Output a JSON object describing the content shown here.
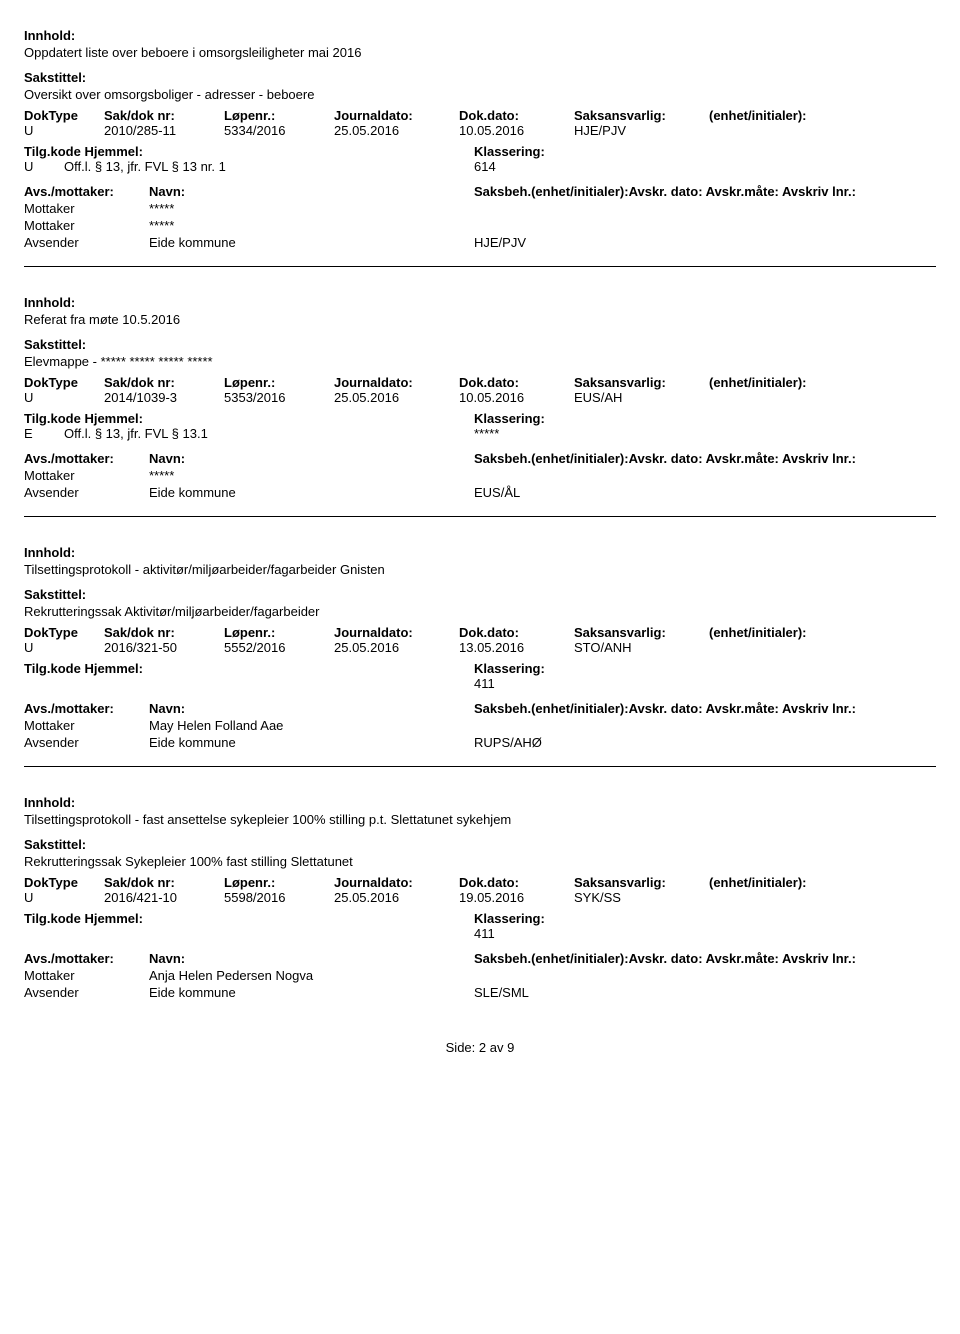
{
  "labels": {
    "innhold": "Innhold:",
    "sakstittel": "Sakstittel:",
    "dokType": "DokType",
    "sakDok": "Sak/dok nr:",
    "lopenr": "Løpenr.:",
    "journaldato": "Journaldato:",
    "dokdato": "Dok.dato:",
    "saksansvarlig": "Saksansvarlig:",
    "enhetInit": "(enhet/initialer):",
    "tilgKode": "Tilg.kode",
    "hjemmel": "Hjemmel:",
    "klassering": "Klassering:",
    "avsMottaker": "Avs./mottaker:",
    "navn": "Navn:",
    "saksbehLine": "Saksbeh.(enhet/initialer):Avskr. dato: Avskr.måte: Avskriv lnr.:",
    "mottaker": "Mottaker",
    "avsender": "Avsender",
    "side": "Side:",
    "av": "av"
  },
  "entries": [
    {
      "innhold": "Oppdatert liste over beboere i omsorgsleiligheter mai 2016",
      "sakstittel": "Oversikt over omsorgsboliger - adresser - beboere",
      "dokType": "U",
      "sakDok": "2010/285-11",
      "lopenr": "5334/2016",
      "journaldato": "25.05.2016",
      "dokdato": "10.05.2016",
      "saksansvarlig": "HJE/PJV",
      "enhetInit": "",
      "tilgKode": "U",
      "hjemmel": "Off.l. § 13, jfr. FVL § 13 nr. 1",
      "klassering": "614",
      "parties": [
        {
          "role": "Mottaker",
          "name": "*****",
          "code": ""
        },
        {
          "role": "Mottaker",
          "name": "*****",
          "code": ""
        },
        {
          "role": "Avsender",
          "name": "Eide kommune",
          "code": "HJE/PJV"
        }
      ]
    },
    {
      "innhold": "Referat fra møte 10.5.2016",
      "sakstittel": "Elevmappe - ***** ***** ***** *****",
      "dokType": "U",
      "sakDok": "2014/1039-3",
      "lopenr": "5353/2016",
      "journaldato": "25.05.2016",
      "dokdato": "10.05.2016",
      "saksansvarlig": "EUS/AH",
      "enhetInit": "",
      "tilgKode": "E",
      "hjemmel": "Off.l. § 13, jfr. FVL § 13.1",
      "klassering": "*****",
      "parties": [
        {
          "role": "Mottaker",
          "name": "*****",
          "code": ""
        },
        {
          "role": "Avsender",
          "name": "Eide kommune",
          "code": "EUS/ÅL"
        }
      ]
    },
    {
      "innhold": "Tilsettingsprotokoll - aktivitør/miljøarbeider/fagarbeider Gnisten",
      "sakstittel": "Rekrutteringssak Aktivitør/miljøarbeider/fagarbeider",
      "dokType": "U",
      "sakDok": "2016/321-50",
      "lopenr": "5552/2016",
      "journaldato": "25.05.2016",
      "dokdato": "13.05.2016",
      "saksansvarlig": "STO/ANH",
      "enhetInit": "",
      "tilgKode": "",
      "hjemmel": "",
      "klassering": "411",
      "parties": [
        {
          "role": "Mottaker",
          "name": "May Helen Folland Aae",
          "code": ""
        },
        {
          "role": "Avsender",
          "name": "Eide kommune",
          "code": "RUPS/AHØ"
        }
      ]
    },
    {
      "innhold": "Tilsettingsprotokoll - fast ansettelse sykepleier 100% stilling p.t. Slettatunet sykehjem",
      "sakstittel": "Rekrutteringssak Sykepleier 100% fast stilling Slettatunet",
      "dokType": "U",
      "sakDok": "2016/421-10",
      "lopenr": "5598/2016",
      "journaldato": "25.05.2016",
      "dokdato": "19.05.2016",
      "saksansvarlig": "SYK/SS",
      "enhetInit": "",
      "tilgKode": "",
      "hjemmel": "",
      "klassering": "411",
      "parties": [
        {
          "role": "Mottaker",
          "name": "Anja Helen Pedersen Nogva",
          "code": ""
        },
        {
          "role": "Avsender",
          "name": "Eide kommune",
          "code": "SLE/SML"
        }
      ]
    }
  ],
  "page": {
    "current": "2",
    "total": "9"
  }
}
